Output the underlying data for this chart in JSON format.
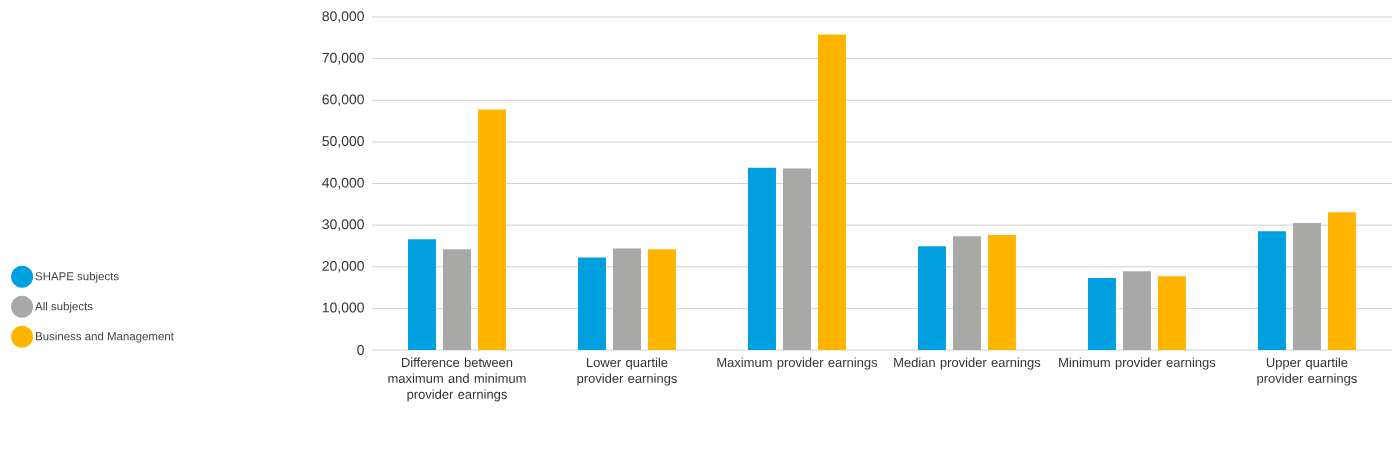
{
  "chart_data": {
    "type": "bar",
    "categories": [
      "Difference between maximum and minimum provider earnings",
      "Lower quartile provider earnings",
      "Maximum provider earnings",
      "Median provider earnings",
      "Minimum provider earnings",
      "Upper quartile provider earnings"
    ],
    "series": [
      {
        "name": "SHAPE subjects",
        "color": "#009fdf",
        "values": [
          26600,
          22200,
          43800,
          24900,
          17300,
          28500
        ]
      },
      {
        "name": "All subjects",
        "color": "#a8a8a7",
        "values": [
          24200,
          24400,
          43600,
          27300,
          18900,
          30500
        ]
      },
      {
        "name": "Business and Management",
        "color": "#ffb500",
        "values": [
          57800,
          24200,
          75800,
          27600,
          17700,
          33100
        ]
      }
    ],
    "ylim": [
      0,
      80000
    ],
    "yticks": [
      {
        "value": 0,
        "label": "0"
      },
      {
        "value": 10000,
        "label": "10,000"
      },
      {
        "value": 20000,
        "label": "20,000"
      },
      {
        "value": 30000,
        "label": "30,000"
      },
      {
        "value": 40000,
        "label": "40,000"
      },
      {
        "value": 50000,
        "label": "50,000"
      },
      {
        "value": 60000,
        "label": "60,000"
      },
      {
        "value": 70000,
        "label": "70,000"
      },
      {
        "value": 80000,
        "label": "80,000"
      }
    ],
    "grid": "y",
    "legend": "left"
  }
}
